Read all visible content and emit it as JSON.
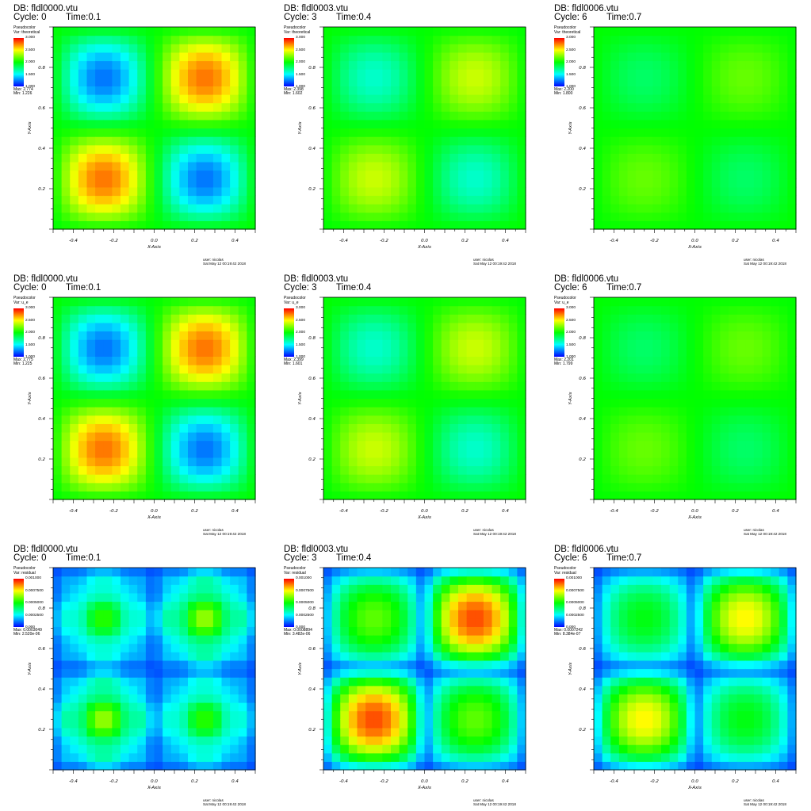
{
  "chart_data": [
    {
      "type": "heatmap",
      "db": "DB: fldl0000.vtu",
      "cycle": "Cycle: 0",
      "time": "Time:0.1",
      "plot_type": "Pseudocolor",
      "var": "Var: theoretical",
      "colorbar_ticks": [
        "3.000",
        "2.500",
        "2.000",
        "1.500",
        "1.000"
      ],
      "max": "Max: 2.774",
      "min": "Min: 1.226",
      "kind": "field",
      "amp": 0.774,
      "xlim": [
        -0.5,
        0.5
      ],
      "ylim": [
        0,
        1
      ],
      "xticks": [
        "-0.4",
        "-0.2",
        "0.0",
        "0.2",
        "0.4"
      ],
      "yticks": [
        "0.2",
        "0.4",
        "0.6",
        "0.8"
      ],
      "xlabel": "X-Axis",
      "ylabel": "Y-Axis",
      "user": "user: nicolas",
      "date": "Sat May 12 00:19:42 2018"
    },
    {
      "type": "heatmap",
      "db": "DB: fldl0003.vtu",
      "cycle": "Cycle: 3",
      "time": "Time:0.4",
      "plot_type": "Pseudocolor",
      "var": "Var: theoretical",
      "colorbar_ticks": [
        "3.000",
        "2.500",
        "2.000",
        "1.500",
        "1.000"
      ],
      "max": "Max: 2.398",
      "min": "Min: 1.602",
      "kind": "field",
      "amp": 0.398,
      "xlim": [
        -0.5,
        0.5
      ],
      "ylim": [
        0,
        1
      ],
      "xticks": [
        "-0.4",
        "-0.2",
        "0.0",
        "0.2",
        "0.4"
      ],
      "yticks": [
        "0.2",
        "0.4",
        "0.6",
        "0.8"
      ],
      "xlabel": "X-Axis",
      "ylabel": "Y-Axis",
      "user": "user: nicolas",
      "date": "Sat May 12 00:19:42 2018"
    },
    {
      "type": "heatmap",
      "db": "DB: fldl0006.vtu",
      "cycle": "Cycle: 6",
      "time": "Time:0.7",
      "plot_type": "Pseudocolor",
      "var": "Var: theoretical",
      "colorbar_ticks": [
        "3.000",
        "2.500",
        "2.000",
        "1.500",
        "1.000"
      ],
      "max": "Max: 2.200",
      "min": "Min: 1.800",
      "kind": "field",
      "amp": 0.2,
      "xlim": [
        -0.5,
        0.5
      ],
      "ylim": [
        0,
        1
      ],
      "xticks": [
        "-0.4",
        "-0.2",
        "0.0",
        "0.2",
        "0.4"
      ],
      "yticks": [
        "0.2",
        "0.4",
        "0.6",
        "0.8"
      ],
      "xlabel": "X-Axis",
      "ylabel": "Y-Axis",
      "user": "user: nicolas",
      "date": "Sat May 12 00:19:42 2018"
    },
    {
      "type": "heatmap",
      "db": "DB: fldl0000.vtu",
      "cycle": "Cycle: 0",
      "time": "Time:0.1",
      "plot_type": "Pseudocolor",
      "var": "Var: u_e",
      "colorbar_ticks": [
        "3.000",
        "2.500",
        "2.000",
        "1.500",
        "1.000"
      ],
      "max": "Max: 2.775",
      "min": "Min: 1.225",
      "kind": "field",
      "amp": 0.775,
      "xlim": [
        -0.5,
        0.5
      ],
      "ylim": [
        0,
        1
      ],
      "xticks": [
        "-0.4",
        "-0.2",
        "0.0",
        "0.2",
        "0.4"
      ],
      "yticks": [
        "0.2",
        "0.4",
        "0.6",
        "0.8"
      ],
      "xlabel": "X-Axis",
      "ylabel": "Y-Axis",
      "user": "user: nicolas",
      "date": "Sat May 12 00:19:42 2018"
    },
    {
      "type": "heatmap",
      "db": "DB: fldl0003.vtu",
      "cycle": "Cycle: 3",
      "time": "Time:0.4",
      "plot_type": "Pseudocolor",
      "var": "Var: u_e",
      "colorbar_ticks": [
        "3.000",
        "2.500",
        "2.000",
        "1.500",
        "1.000"
      ],
      "max": "Max: 2.399",
      "min": "Min: 1.601",
      "kind": "field",
      "amp": 0.399,
      "xlim": [
        -0.5,
        0.5
      ],
      "ylim": [
        0,
        1
      ],
      "xticks": [
        "-0.4",
        "-0.2",
        "0.0",
        "0.2",
        "0.4"
      ],
      "yticks": [
        "0.2",
        "0.4",
        "0.6",
        "0.8"
      ],
      "xlabel": "X-Axis",
      "ylabel": "Y-Axis",
      "user": "user: nicolas",
      "date": "Sat May 12 00:19:42 2018"
    },
    {
      "type": "heatmap",
      "db": "DB: fldl0006.vtu",
      "cycle": "Cycle: 6",
      "time": "Time:0.7",
      "plot_type": "Pseudocolor",
      "var": "Var: u_e",
      "colorbar_ticks": [
        "3.000",
        "2.500",
        "2.000",
        "1.500",
        "1.000"
      ],
      "max": "Max: 2.201",
      "min": "Min: 1.799",
      "kind": "field",
      "amp": 0.201,
      "xlim": [
        -0.5,
        0.5
      ],
      "ylim": [
        0,
        1
      ],
      "xticks": [
        "-0.4",
        "-0.2",
        "0.0",
        "0.2",
        "0.4"
      ],
      "yticks": [
        "0.2",
        "0.4",
        "0.6",
        "0.8"
      ],
      "xlabel": "X-Axis",
      "ylabel": "Y-Axis",
      "user": "user: nicolas",
      "date": "Sat May 12 00:19:42 2018"
    },
    {
      "type": "heatmap",
      "db": "DB: fldl0000.vtu",
      "cycle": "Cycle: 0",
      "time": "Time:0.1",
      "plot_type": "Pseudocolor",
      "var": "Var: residual",
      "colorbar_ticks": [
        "0.001000",
        "0.0007500",
        "0.0005000",
        "0.0002500",
        "0.000"
      ],
      "max": "Max: 0.0003049",
      "min": "Min: 2.520e-06",
      "kind": "residual",
      "peak": 0.5,
      "sub": true,
      "xlim": [
        -0.5,
        0.5
      ],
      "ylim": [
        0,
        1
      ],
      "xticks": [
        "-0.4",
        "-0.2",
        "0.0",
        "0.2",
        "0.4"
      ],
      "yticks": [
        "0.2",
        "0.4",
        "0.6",
        "0.8"
      ],
      "xlabel": "X-Axis",
      "ylabel": "Y-Axis",
      "user": "user: nicolas",
      "date": "Sat May 12 00:19:42 2018"
    },
    {
      "type": "heatmap",
      "db": "DB: fldl0003.vtu",
      "cycle": "Cycle: 3",
      "time": "Time:0.4",
      "plot_type": "Pseudocolor",
      "var": "Var: residual",
      "colorbar_ticks": [
        "0.001000",
        "0.0007500",
        "0.0005000",
        "0.0002500",
        "0.000"
      ],
      "max": "Max: 0.0008894",
      "min": "Min: 3.482e-06",
      "kind": "residual",
      "peak": 0.89,
      "sub": false,
      "xlim": [
        -0.5,
        0.5
      ],
      "ylim": [
        0,
        1
      ],
      "xticks": [
        "-0.4",
        "-0.2",
        "0.0",
        "0.2",
        "0.4"
      ],
      "yticks": [
        "0.2",
        "0.4",
        "0.6",
        "0.8"
      ],
      "xlabel": "X-Axis",
      "ylabel": "Y-Axis",
      "user": "user: nicolas",
      "date": "Sat May 12 00:19:42 2018"
    },
    {
      "type": "heatmap",
      "db": "DB: fldl0006.vtu",
      "cycle": "Cycle: 6",
      "time": "Time:0.7",
      "plot_type": "Pseudocolor",
      "var": "Var: residual",
      "colorbar_ticks": [
        "0.001000",
        "0.0007500",
        "0.0005000",
        "0.0002500",
        "0.000"
      ],
      "max": "Max: 0.0007242",
      "min": "Min: 8.384e-07",
      "kind": "residual",
      "peak": 0.72,
      "sub": false,
      "xlim": [
        -0.5,
        0.5
      ],
      "ylim": [
        0,
        1
      ],
      "xticks": [
        "-0.4",
        "-0.2",
        "0.0",
        "0.2",
        "0.4"
      ],
      "yticks": [
        "0.2",
        "0.4",
        "0.6",
        "0.8"
      ],
      "xlabel": "X-Axis",
      "ylabel": "Y-Axis",
      "user": "user: nicolas",
      "date": "Sat May 12 00:19:42 2018"
    }
  ]
}
